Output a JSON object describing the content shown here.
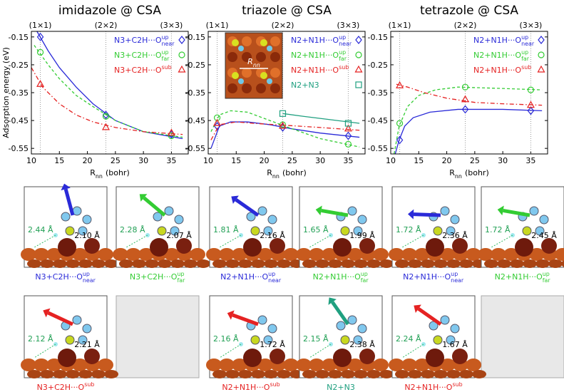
{
  "chart_data": [
    {
      "type": "line",
      "title": "imidazole @ CSA",
      "ylabel": "Adsorption energy (eV)",
      "xlabel": "R",
      "xlabel_sub": "nn",
      "xlabel_unit": "(bohr)",
      "xlim": [
        10,
        38
      ],
      "ylim": [
        -0.57,
        -0.13
      ],
      "xticks": [
        10,
        15,
        20,
        25,
        30,
        35
      ],
      "yticks": [
        -0.55,
        -0.45,
        -0.35,
        -0.25,
        -0.15
      ],
      "top_ticks": [
        {
          "value": 11.6,
          "label": "(1×1)"
        },
        {
          "value": 23.3,
          "label": "(2×2)"
        },
        {
          "value": 35,
          "label": "(3×3)"
        }
      ],
      "series": [
        {
          "name": "N3+C2H···O",
          "name_sup": "up",
          "name_sub": "near",
          "color": "#2a2ad8",
          "marker": "diamond",
          "line_style": "solid",
          "x": [
            11.6,
            23.3,
            35
          ],
          "values": [
            -0.15,
            -0.43,
            -0.5
          ],
          "fit_x": [
            11,
            13,
            15,
            18,
            21,
            25,
            30,
            37
          ],
          "fit_values": [
            -0.13,
            -0.2,
            -0.26,
            -0.33,
            -0.39,
            -0.45,
            -0.49,
            -0.515
          ]
        },
        {
          "name": "N3+C2H···O",
          "name_sup": "up",
          "name_sub": "far",
          "color": "#33cc33",
          "marker": "circle",
          "line_style": "dashed",
          "x": [
            11.6,
            23.3,
            35
          ],
          "values": [
            -0.205,
            -0.435,
            -0.505
          ],
          "fit_x": [
            10.5,
            13,
            15,
            18,
            21,
            25,
            30,
            37
          ],
          "fit_values": [
            -0.18,
            -0.25,
            -0.3,
            -0.36,
            -0.4,
            -0.45,
            -0.49,
            -0.51
          ]
        },
        {
          "name": "N3+C2H···O",
          "name_sup": "sub",
          "color": "#e52222",
          "marker": "triangle",
          "line_style": "dashdot",
          "x": [
            11.6,
            23.3,
            35
          ],
          "values": [
            -0.32,
            -0.475,
            -0.495
          ],
          "fit_x": [
            10,
            12,
            15,
            18,
            21,
            25,
            30,
            37
          ],
          "fit_values": [
            -0.26,
            -0.33,
            -0.39,
            -0.43,
            -0.455,
            -0.475,
            -0.49,
            -0.5
          ]
        }
      ]
    },
    {
      "type": "line",
      "title": "triazole @ CSA",
      "xlabel": "R",
      "xlabel_sub": "nn",
      "xlabel_unit": "(bohr)",
      "xlim": [
        10,
        38
      ],
      "ylim": [
        -0.57,
        -0.13
      ],
      "xticks": [
        10,
        15,
        20,
        25,
        30,
        35
      ],
      "yticks": [
        -0.55,
        -0.45,
        -0.35,
        -0.25,
        -0.15
      ],
      "top_ticks": [
        {
          "value": 11.6,
          "label": "(1×1)"
        },
        {
          "value": 23.3,
          "label": "(2×2)"
        },
        {
          "value": 35,
          "label": "(3×3)"
        }
      ],
      "inset_label": "R",
      "inset_label_sub": "nn",
      "series": [
        {
          "name": "N2+N1H···O",
          "name_sup": "up",
          "name_sub": "near",
          "color": "#2a2ad8",
          "marker": "diamond",
          "line_style": "solid",
          "x": [
            11.6,
            23.3,
            35
          ],
          "values": [
            -0.47,
            -0.475,
            -0.505
          ],
          "fit_x": [
            10.5,
            12,
            14,
            17,
            21,
            25,
            30,
            37
          ],
          "fit_values": [
            -0.55,
            -0.47,
            -0.455,
            -0.455,
            -0.465,
            -0.48,
            -0.495,
            -0.51
          ]
        },
        {
          "name": "N2+N1H···O",
          "name_sup": "up",
          "name_sub": "far",
          "color": "#33cc33",
          "marker": "circle",
          "line_style": "dashed",
          "x": [
            11.6,
            23.3,
            35
          ],
          "values": [
            -0.44,
            -0.465,
            -0.535
          ],
          "fit_x": [
            10.5,
            12,
            14,
            17,
            21,
            25,
            30,
            37
          ],
          "fit_values": [
            -0.49,
            -0.43,
            -0.415,
            -0.42,
            -0.45,
            -0.48,
            -0.515,
            -0.545
          ]
        },
        {
          "name": "N2+N1H···O",
          "name_sup": "sub",
          "color": "#e52222",
          "marker": "triangle",
          "line_style": "dashdot",
          "x": [
            11.6,
            23.3,
            35
          ],
          "values": [
            -0.46,
            -0.47,
            -0.48
          ],
          "fit_x": [
            10.5,
            12,
            15,
            18,
            22,
            26,
            30,
            37
          ],
          "fit_values": [
            -0.52,
            -0.465,
            -0.455,
            -0.46,
            -0.465,
            -0.47,
            -0.475,
            -0.485
          ]
        },
        {
          "name": "N2+N3",
          "color": "#20a080",
          "marker": "square",
          "line_style": "solid",
          "x": [
            23.3,
            35
          ],
          "values": [
            -0.425,
            -0.46
          ],
          "fit_x": [
            23.3,
            27,
            31,
            37
          ],
          "fit_values": [
            -0.425,
            -0.435,
            -0.445,
            -0.46
          ]
        }
      ]
    },
    {
      "type": "line",
      "title": "tetrazole @ CSA",
      "xlabel": "R",
      "xlabel_sub": "nn",
      "xlabel_unit": "(bohr)",
      "xlim": [
        10,
        38
      ],
      "ylim": [
        -0.57,
        -0.13
      ],
      "xticks": [
        10,
        15,
        20,
        25,
        30,
        35
      ],
      "yticks": [
        -0.55,
        -0.45,
        -0.35,
        -0.25,
        -0.15
      ],
      "top_ticks": [
        {
          "value": 11.6,
          "label": "(1×1)"
        },
        {
          "value": 23.3,
          "label": "(2×2)"
        },
        {
          "value": 35,
          "label": "(3×3)"
        }
      ],
      "series": [
        {
          "name": "N2+N1H···O",
          "name_sup": "up",
          "name_sub": "near",
          "color": "#2a2ad8",
          "marker": "diamond",
          "line_style": "solid",
          "x": [
            11.6,
            23.3,
            35
          ],
          "values": [
            -0.52,
            -0.41,
            -0.415
          ],
          "fit_x": [
            10.8,
            11.5,
            12.5,
            14,
            17,
            22,
            30,
            37
          ],
          "fit_values": [
            -0.57,
            -0.52,
            -0.47,
            -0.44,
            -0.42,
            -0.41,
            -0.41,
            -0.415
          ]
        },
        {
          "name": "N2+N1H···O",
          "name_sup": "up",
          "name_sub": "far",
          "color": "#33cc33",
          "marker": "circle",
          "line_style": "dashed",
          "x": [
            11.6,
            23.3,
            35
          ],
          "values": [
            -0.46,
            -0.33,
            -0.34
          ],
          "fit_x": [
            10.6,
            11.5,
            13,
            15,
            18,
            22,
            30,
            37
          ],
          "fit_values": [
            -0.57,
            -0.47,
            -0.4,
            -0.36,
            -0.34,
            -0.33,
            -0.335,
            -0.34
          ]
        },
        {
          "name": "N2+N1H···O",
          "name_sup": "sub",
          "color": "#e52222",
          "marker": "triangle",
          "line_style": "dashdot",
          "x": [
            11.6,
            23.3,
            35
          ],
          "values": [
            -0.325,
            -0.375,
            -0.395
          ],
          "fit_x": [
            11,
            13,
            16,
            20,
            25,
            30,
            37
          ],
          "fit_values": [
            -0.32,
            -0.33,
            -0.35,
            -0.37,
            -0.385,
            -0.39,
            -0.395
          ]
        }
      ]
    }
  ],
  "panels": [
    {
      "caption": "N3+C2H···O",
      "caption_sup": "up",
      "caption_sub": "near",
      "color": "#2a2ad8",
      "distances": [
        "2.44 Å",
        "2.10 Å"
      ]
    },
    {
      "caption": "N3+C2H···O",
      "caption_sup": "up",
      "caption_sub": "far",
      "color": "#33cc33",
      "distances": [
        "2.28 Å",
        "2.07 Å"
      ]
    },
    {
      "caption": "N2+N1H···O",
      "caption_sup": "up",
      "caption_sub": "near",
      "color": "#2a2ad8",
      "distances": [
        "1.81 Å",
        "2.16 Å"
      ]
    },
    {
      "caption": "N2+N1H···O",
      "caption_sup": "up",
      "caption_sub": "far",
      "color": "#33cc33",
      "distances": [
        "1.65 Å",
        "1.99 Å"
      ]
    },
    {
      "caption": "N2+N1H···O",
      "caption_sup": "up",
      "caption_sub": "near",
      "color": "#2a2ad8",
      "distances": [
        "1.72 Å",
        "2.36 Å"
      ]
    },
    {
      "caption": "N2+N1H···O",
      "caption_sup": "up",
      "caption_sub": "far",
      "color": "#33cc33",
      "distances": [
        "1.72 Å",
        "2.45 Å"
      ]
    },
    {
      "caption": "N3+C2H···O",
      "caption_sup": "sub",
      "color": "#e52222",
      "distances": [
        "2.12 Å",
        "2.21 Å"
      ]
    },
    {
      "caption": "N2+N1H···O",
      "caption_sup": "sub",
      "color": "#e52222",
      "distances": [
        "2.16 Å",
        "1.72 Å"
      ]
    },
    {
      "caption": "N2+N3",
      "color": "#20a080",
      "distances": [
        "2.15 Å",
        "2.38 Å"
      ]
    },
    {
      "caption": "N2+N1H···O",
      "caption_sup": "sub",
      "color": "#e52222",
      "distances": [
        "2.24 Å",
        "1.67 Å"
      ]
    }
  ]
}
